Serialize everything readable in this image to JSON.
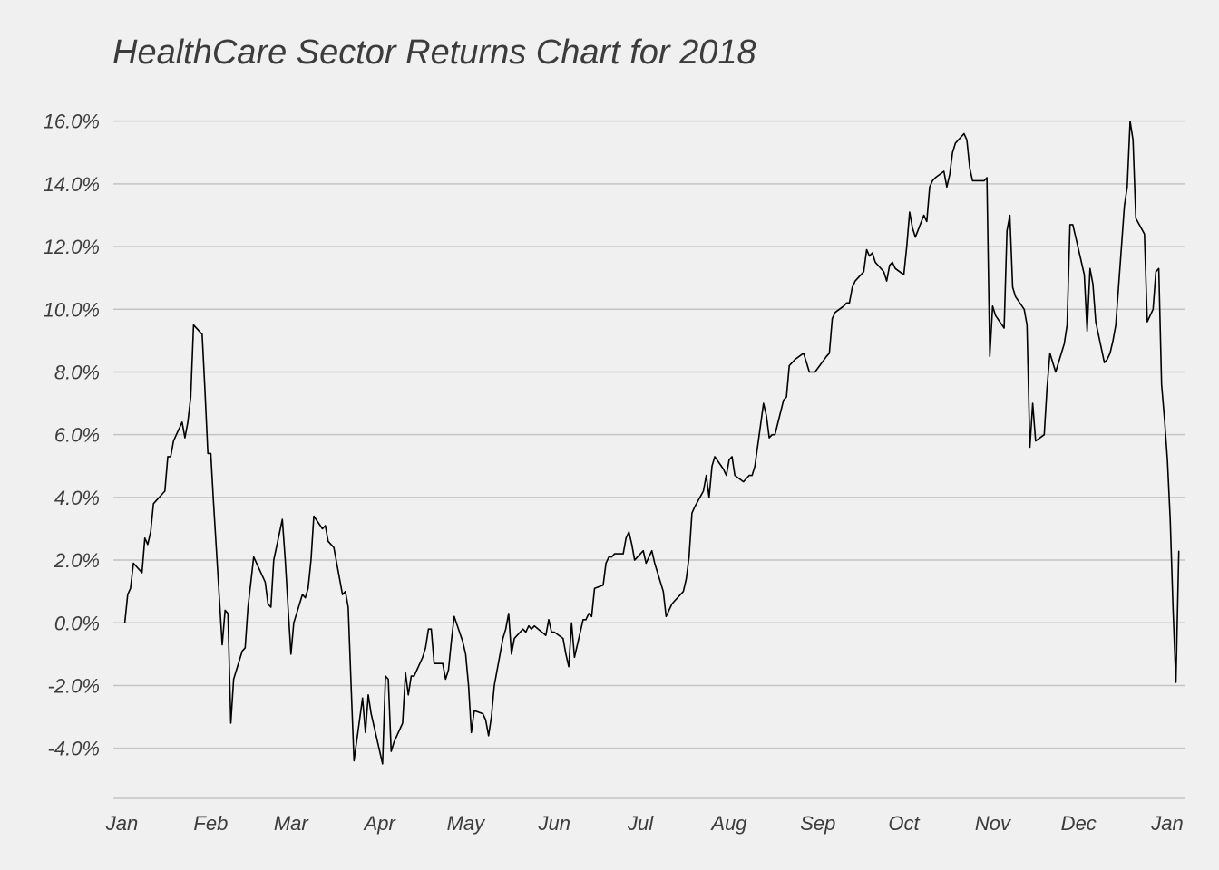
{
  "chart_data": {
    "type": "line",
    "title": "HealthCare Sector Returns Chart for 2018",
    "xlabel": "",
    "ylabel": "",
    "xlim": [
      "2017-12-29",
      "2019-01-07"
    ],
    "ylim": [
      -5.6,
      16.8
    ],
    "grid": true,
    "legend": "none",
    "x_ticks": [
      {
        "date": "2018-01-01",
        "label": "Jan"
      },
      {
        "date": "2018-02-01",
        "label": "Feb"
      },
      {
        "date": "2018-03-01",
        "label": "Mar"
      },
      {
        "date": "2018-04-01",
        "label": "Apr"
      },
      {
        "date": "2018-05-01",
        "label": "May"
      },
      {
        "date": "2018-06-01",
        "label": "Jun"
      },
      {
        "date": "2018-07-01",
        "label": "Jul"
      },
      {
        "date": "2018-08-01",
        "label": "Aug"
      },
      {
        "date": "2018-09-01",
        "label": "Sep"
      },
      {
        "date": "2018-10-01",
        "label": "Oct"
      },
      {
        "date": "2018-11-01",
        "label": "Nov"
      },
      {
        "date": "2018-12-01",
        "label": "Dec"
      },
      {
        "date": "2019-01-01",
        "label": "Jan"
      }
    ],
    "y_ticks": [
      {
        "value": -4,
        "label": "-4.0%"
      },
      {
        "value": -2,
        "label": "-2.0%"
      },
      {
        "value": 0,
        "label": "0.0%"
      },
      {
        "value": 2,
        "label": "2.0%"
      },
      {
        "value": 4,
        "label": "4.0%"
      },
      {
        "value": 6,
        "label": "6.0%"
      },
      {
        "value": 8,
        "label": "8.0%"
      },
      {
        "value": 10,
        "label": "10.0%"
      },
      {
        "value": 12,
        "label": "12.0%"
      },
      {
        "value": 14,
        "label": "14.0%"
      },
      {
        "value": 16,
        "label": "16.0%"
      }
    ],
    "series": [
      {
        "color": "#000000",
        "points": [
          [
            "2018-01-02",
            0.0
          ],
          [
            "2018-01-03",
            0.9
          ],
          [
            "2018-01-04",
            1.1
          ],
          [
            "2018-01-05",
            1.9
          ],
          [
            "2018-01-08",
            1.6
          ],
          [
            "2018-01-09",
            2.7
          ],
          [
            "2018-01-10",
            2.5
          ],
          [
            "2018-01-11",
            2.9
          ],
          [
            "2018-01-12",
            3.8
          ],
          [
            "2018-01-16",
            4.2
          ],
          [
            "2018-01-17",
            5.3
          ],
          [
            "2018-01-18",
            5.3
          ],
          [
            "2018-01-19",
            5.8
          ],
          [
            "2018-01-22",
            6.4
          ],
          [
            "2018-01-23",
            5.9
          ],
          [
            "2018-01-24",
            6.4
          ],
          [
            "2018-01-25",
            7.2
          ],
          [
            "2018-01-26",
            9.5
          ],
          [
            "2018-01-29",
            9.2
          ],
          [
            "2018-01-30",
            7.4
          ],
          [
            "2018-01-31",
            5.4
          ],
          [
            "2018-02-01",
            5.4
          ],
          [
            "2018-02-02",
            3.8
          ],
          [
            "2018-02-05",
            -0.7
          ],
          [
            "2018-02-06",
            0.4
          ],
          [
            "2018-02-07",
            0.3
          ],
          [
            "2018-02-08",
            -3.2
          ],
          [
            "2018-02-09",
            -1.8
          ],
          [
            "2018-02-12",
            -0.9
          ],
          [
            "2018-02-13",
            -0.8
          ],
          [
            "2018-02-14",
            0.5
          ],
          [
            "2018-02-15",
            1.3
          ],
          [
            "2018-02-16",
            2.1
          ],
          [
            "2018-02-20",
            1.3
          ],
          [
            "2018-02-21",
            0.6
          ],
          [
            "2018-02-22",
            0.5
          ],
          [
            "2018-02-23",
            2.0
          ],
          [
            "2018-02-26",
            3.3
          ],
          [
            "2018-02-27",
            2.0
          ],
          [
            "2018-02-28",
            0.5
          ],
          [
            "2018-03-01",
            -1.0
          ],
          [
            "2018-03-02",
            0.0
          ],
          [
            "2018-03-05",
            0.9
          ],
          [
            "2018-03-06",
            0.8
          ],
          [
            "2018-03-07",
            1.1
          ],
          [
            "2018-03-08",
            2.0
          ],
          [
            "2018-03-09",
            3.4
          ],
          [
            "2018-03-12",
            3.0
          ],
          [
            "2018-03-13",
            3.1
          ],
          [
            "2018-03-14",
            2.6
          ],
          [
            "2018-03-15",
            2.5
          ],
          [
            "2018-03-16",
            2.4
          ],
          [
            "2018-03-19",
            0.9
          ],
          [
            "2018-03-20",
            1.0
          ],
          [
            "2018-03-21",
            0.5
          ],
          [
            "2018-03-22",
            -2.0
          ],
          [
            "2018-03-23",
            -4.4
          ],
          [
            "2018-03-26",
            -2.4
          ],
          [
            "2018-03-27",
            -3.5
          ],
          [
            "2018-03-28",
            -2.3
          ],
          [
            "2018-03-29",
            -2.9
          ],
          [
            "2018-04-02",
            -4.5
          ],
          [
            "2018-04-03",
            -1.7
          ],
          [
            "2018-04-04",
            -1.8
          ],
          [
            "2018-04-05",
            -4.1
          ],
          [
            "2018-04-06",
            -3.8
          ],
          [
            "2018-04-09",
            -3.2
          ],
          [
            "2018-04-10",
            -1.6
          ],
          [
            "2018-04-11",
            -2.3
          ],
          [
            "2018-04-12",
            -1.7
          ],
          [
            "2018-04-13",
            -1.7
          ],
          [
            "2018-04-16",
            -1.1
          ],
          [
            "2018-04-17",
            -0.8
          ],
          [
            "2018-04-18",
            -0.2
          ],
          [
            "2018-04-19",
            -0.2
          ],
          [
            "2018-04-20",
            -1.3
          ],
          [
            "2018-04-23",
            -1.3
          ],
          [
            "2018-04-24",
            -1.8
          ],
          [
            "2018-04-25",
            -1.5
          ],
          [
            "2018-04-26",
            -0.6
          ],
          [
            "2018-04-27",
            0.2
          ],
          [
            "2018-04-30",
            -0.6
          ],
          [
            "2018-05-01",
            -1.0
          ],
          [
            "2018-05-02",
            -2.0
          ],
          [
            "2018-05-03",
            -3.5
          ],
          [
            "2018-05-04",
            -2.8
          ],
          [
            "2018-05-07",
            -2.9
          ],
          [
            "2018-05-08",
            -3.1
          ],
          [
            "2018-05-09",
            -3.6
          ],
          [
            "2018-05-10",
            -3.0
          ],
          [
            "2018-05-11",
            -2.0
          ],
          [
            "2018-05-14",
            -0.5
          ],
          [
            "2018-05-15",
            -0.2
          ],
          [
            "2018-05-16",
            0.3
          ],
          [
            "2018-05-17",
            -1.0
          ],
          [
            "2018-05-18",
            -0.5
          ],
          [
            "2018-05-21",
            -0.2
          ],
          [
            "2018-05-22",
            -0.3
          ],
          [
            "2018-05-23",
            -0.1
          ],
          [
            "2018-05-24",
            -0.2
          ],
          [
            "2018-05-25",
            -0.1
          ],
          [
            "2018-05-29",
            -0.4
          ],
          [
            "2018-05-30",
            0.1
          ],
          [
            "2018-05-31",
            -0.3
          ],
          [
            "2018-06-01",
            -0.3
          ],
          [
            "2018-06-04",
            -0.5
          ],
          [
            "2018-06-05",
            -1.0
          ],
          [
            "2018-06-06",
            -1.4
          ],
          [
            "2018-06-07",
            0.0
          ],
          [
            "2018-06-08",
            -1.1
          ],
          [
            "2018-06-11",
            0.1
          ],
          [
            "2018-06-12",
            0.1
          ],
          [
            "2018-06-13",
            0.3
          ],
          [
            "2018-06-14",
            0.2
          ],
          [
            "2018-06-15",
            1.1
          ],
          [
            "2018-06-18",
            1.2
          ],
          [
            "2018-06-19",
            1.9
          ],
          [
            "2018-06-20",
            2.1
          ],
          [
            "2018-06-21",
            2.1
          ],
          [
            "2018-06-22",
            2.2
          ],
          [
            "2018-06-25",
            2.2
          ],
          [
            "2018-06-26",
            2.7
          ],
          [
            "2018-06-27",
            2.9
          ],
          [
            "2018-06-28",
            2.5
          ],
          [
            "2018-06-29",
            2.0
          ],
          [
            "2018-07-02",
            2.3
          ],
          [
            "2018-07-03",
            1.9
          ],
          [
            "2018-07-05",
            2.3
          ],
          [
            "2018-07-06",
            1.9
          ],
          [
            "2018-07-09",
            1.0
          ],
          [
            "2018-07-10",
            0.2
          ],
          [
            "2018-07-11",
            0.4
          ],
          [
            "2018-07-12",
            0.6
          ],
          [
            "2018-07-13",
            0.7
          ],
          [
            "2018-07-16",
            1.0
          ],
          [
            "2018-07-17",
            1.4
          ],
          [
            "2018-07-18",
            2.1
          ],
          [
            "2018-07-19",
            3.5
          ],
          [
            "2018-07-20",
            3.7
          ],
          [
            "2018-07-23",
            4.2
          ],
          [
            "2018-07-24",
            4.7
          ],
          [
            "2018-07-25",
            4.0
          ],
          [
            "2018-07-26",
            5.0
          ],
          [
            "2018-07-27",
            5.3
          ],
          [
            "2018-07-30",
            4.9
          ],
          [
            "2018-07-31",
            4.7
          ],
          [
            "2018-08-01",
            5.2
          ],
          [
            "2018-08-02",
            5.3
          ],
          [
            "2018-08-03",
            4.7
          ],
          [
            "2018-08-06",
            4.5
          ],
          [
            "2018-08-07",
            4.6
          ],
          [
            "2018-08-08",
            4.7
          ],
          [
            "2018-08-09",
            4.7
          ],
          [
            "2018-08-10",
            5.0
          ],
          [
            "2018-08-13",
            7.0
          ],
          [
            "2018-08-14",
            6.6
          ],
          [
            "2018-08-15",
            5.9
          ],
          [
            "2018-08-16",
            6.0
          ],
          [
            "2018-08-17",
            6.0
          ],
          [
            "2018-08-20",
            7.1
          ],
          [
            "2018-08-21",
            7.2
          ],
          [
            "2018-08-22",
            8.2
          ],
          [
            "2018-08-23",
            8.3
          ],
          [
            "2018-08-24",
            8.4
          ],
          [
            "2018-08-27",
            8.6
          ],
          [
            "2018-08-28",
            8.3
          ],
          [
            "2018-08-29",
            8.0
          ],
          [
            "2018-08-30",
            8.0
          ],
          [
            "2018-08-31",
            8.0
          ],
          [
            "2018-09-04",
            8.5
          ],
          [
            "2018-09-05",
            8.6
          ],
          [
            "2018-09-06",
            9.7
          ],
          [
            "2018-09-07",
            9.9
          ],
          [
            "2018-09-10",
            10.1
          ],
          [
            "2018-09-11",
            10.2
          ],
          [
            "2018-09-12",
            10.2
          ],
          [
            "2018-09-13",
            10.7
          ],
          [
            "2018-09-14",
            10.9
          ],
          [
            "2018-09-17",
            11.2
          ],
          [
            "2018-09-18",
            11.9
          ],
          [
            "2018-09-19",
            11.7
          ],
          [
            "2018-09-20",
            11.8
          ],
          [
            "2018-09-21",
            11.5
          ],
          [
            "2018-09-24",
            11.2
          ],
          [
            "2018-09-25",
            10.9
          ],
          [
            "2018-09-26",
            11.4
          ],
          [
            "2018-09-27",
            11.5
          ],
          [
            "2018-09-28",
            11.3
          ],
          [
            "2018-10-01",
            11.1
          ],
          [
            "2018-10-02",
            12.0
          ],
          [
            "2018-10-03",
            13.1
          ],
          [
            "2018-10-04",
            12.6
          ],
          [
            "2018-10-05",
            12.3
          ],
          [
            "2018-10-08",
            13.0
          ],
          [
            "2018-10-09",
            12.8
          ],
          [
            "2018-10-10",
            13.9
          ],
          [
            "2018-10-11",
            14.1
          ],
          [
            "2018-10-12",
            14.2
          ],
          [
            "2018-10-15",
            14.4
          ],
          [
            "2018-10-16",
            13.9
          ],
          [
            "2018-10-17",
            14.3
          ],
          [
            "2018-10-18",
            15.0
          ],
          [
            "2018-10-19",
            15.3
          ],
          [
            "2018-10-22",
            15.6
          ],
          [
            "2018-10-23",
            15.4
          ],
          [
            "2018-10-24",
            14.5
          ],
          [
            "2018-10-25",
            14.1
          ],
          [
            "2018-10-26",
            14.1
          ],
          [
            "2018-10-29",
            14.1
          ],
          [
            "2018-10-30",
            14.2
          ],
          [
            "2018-10-31",
            8.5
          ],
          [
            "2018-11-01",
            10.1
          ],
          [
            "2018-11-02",
            9.8
          ],
          [
            "2018-11-05",
            9.4
          ],
          [
            "2018-11-06",
            12.5
          ],
          [
            "2018-11-07",
            13.0
          ],
          [
            "2018-11-08",
            10.7
          ],
          [
            "2018-11-09",
            10.4
          ],
          [
            "2018-11-12",
            10.0
          ],
          [
            "2018-11-13",
            9.5
          ],
          [
            "2018-11-14",
            5.6
          ],
          [
            "2018-11-15",
            7.0
          ],
          [
            "2018-11-16",
            5.8
          ],
          [
            "2018-11-19",
            6.0
          ],
          [
            "2018-11-20",
            7.5
          ],
          [
            "2018-11-21",
            8.6
          ],
          [
            "2018-11-23",
            8.0
          ],
          [
            "2018-11-26",
            8.9
          ],
          [
            "2018-11-27",
            9.5
          ],
          [
            "2018-11-28",
            12.7
          ],
          [
            "2018-11-29",
            12.7
          ],
          [
            "2018-11-30",
            12.3
          ],
          [
            "2018-12-03",
            11.1
          ],
          [
            "2018-12-04",
            9.3
          ],
          [
            "2018-12-05",
            11.3
          ],
          [
            "2018-12-06",
            10.8
          ],
          [
            "2018-12-07",
            9.6
          ],
          [
            "2018-12-10",
            8.3
          ],
          [
            "2018-12-11",
            8.4
          ],
          [
            "2018-12-12",
            8.6
          ],
          [
            "2018-12-13",
            9.0
          ],
          [
            "2018-12-14",
            9.5
          ],
          [
            "2018-12-17",
            13.3
          ],
          [
            "2018-12-18",
            13.9
          ],
          [
            "2018-12-19",
            16.0
          ],
          [
            "2018-12-20",
            15.4
          ],
          [
            "2018-12-21",
            12.9
          ],
          [
            "2018-12-24",
            12.4
          ],
          [
            "2018-12-25",
            9.6
          ],
          [
            "2018-12-26",
            9.8
          ],
          [
            "2018-12-27",
            10.0
          ],
          [
            "2018-12-28",
            11.2
          ],
          [
            "2018-12-29",
            11.3
          ],
          [
            "2018-12-30",
            7.6
          ],
          [
            "2018-12-31",
            6.5
          ],
          [
            "2019-01-01",
            5.2
          ],
          [
            "2019-01-02",
            3.3
          ],
          [
            "2019-01-03",
            0.4
          ],
          [
            "2019-01-04",
            -1.9
          ],
          [
            "2019-01-05",
            2.3
          ]
        ]
      }
    ]
  }
}
